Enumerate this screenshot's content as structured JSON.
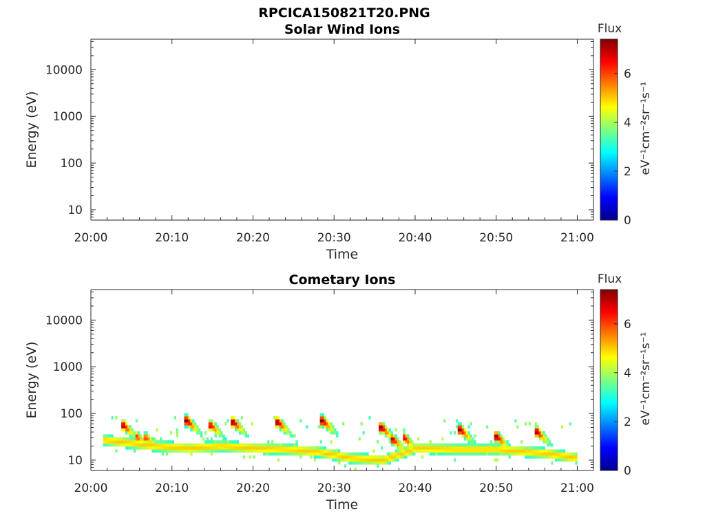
{
  "figure_title": "RPCICA150821T20.PNG",
  "chart_data": [
    {
      "type": "heatmap",
      "title": "Solar Wind Ions",
      "xlabel": "Time",
      "ylabel": "Energy (eV)",
      "x_ticks": [
        "20:00",
        "20:10",
        "20:20",
        "20:30",
        "20:40",
        "20:50",
        "21:00"
      ],
      "x_range_minutes": [
        0,
        62
      ],
      "y_scale": "log",
      "y_ticks": [
        "10",
        "100",
        "1000",
        "10000"
      ],
      "y_range": [
        6,
        45000
      ],
      "colorbar": {
        "title": "Flux",
        "unit": "eV⁻¹cm⁻²sr⁻¹s⁻¹",
        "ticks": [
          "0",
          "2",
          "4",
          "6"
        ],
        "range": [
          0,
          7.4
        ],
        "colormap": "jet"
      },
      "observations": []
    },
    {
      "type": "heatmap",
      "title": "Cometary Ions",
      "xlabel": "Time",
      "ylabel": "Energy (eV)",
      "x_ticks": [
        "20:00",
        "20:10",
        "20:20",
        "20:30",
        "20:40",
        "20:50",
        "21:00"
      ],
      "x_range_minutes": [
        0,
        62
      ],
      "y_scale": "log",
      "y_ticks": [
        "10",
        "100",
        "1000",
        "10000"
      ],
      "y_range": [
        6,
        45000
      ],
      "colorbar": {
        "title": "Flux",
        "unit": "eV⁻¹cm⁻²sr⁻¹s⁻¹",
        "ticks": [
          "0",
          "2",
          "4",
          "6"
        ],
        "range": [
          0,
          7.4
        ],
        "colormap": "jet"
      },
      "observations": {
        "data_start_minute": 1.5,
        "data_end_minute": 60,
        "baseline": [
          [
            1.5,
            27
          ],
          [
            8,
            20
          ],
          [
            12,
            18
          ],
          [
            16,
            20
          ],
          [
            20,
            18
          ],
          [
            24,
            17
          ],
          [
            28,
            15
          ],
          [
            32,
            11
          ],
          [
            36,
            10
          ],
          [
            40,
            18
          ],
          [
            45,
            17
          ],
          [
            50,
            17
          ],
          [
            56,
            14
          ],
          [
            60,
            11
          ]
        ],
        "bursts": [
          {
            "minute": 4.0,
            "peak_energy": 55,
            "intensity": 7.0
          },
          {
            "minute": 5.6,
            "peak_energy": 32,
            "intensity": 6.2
          },
          {
            "minute": 6.8,
            "peak_energy": 30,
            "intensity": 6.0
          },
          {
            "minute": 11.8,
            "peak_energy": 70,
            "intensity": 7.3
          },
          {
            "minute": 14.8,
            "peak_energy": 55,
            "intensity": 6.6
          },
          {
            "minute": 17.5,
            "peak_energy": 65,
            "intensity": 7.2
          },
          {
            "minute": 23.0,
            "peak_energy": 65,
            "intensity": 7.2
          },
          {
            "minute": 28.5,
            "peak_energy": 70,
            "intensity": 7.3
          },
          {
            "minute": 35.8,
            "peak_energy": 50,
            "intensity": 7.2
          },
          {
            "minute": 37.2,
            "peak_energy": 28,
            "intensity": 7.0
          },
          {
            "minute": 38.6,
            "peak_energy": 30,
            "intensity": 6.8
          },
          {
            "minute": 45.5,
            "peak_energy": 45,
            "intensity": 7.3
          },
          {
            "minute": 50.0,
            "peak_energy": 32,
            "intensity": 7.2
          },
          {
            "minute": 55.0,
            "peak_energy": 40,
            "intensity": 7.1
          }
        ]
      }
    }
  ]
}
